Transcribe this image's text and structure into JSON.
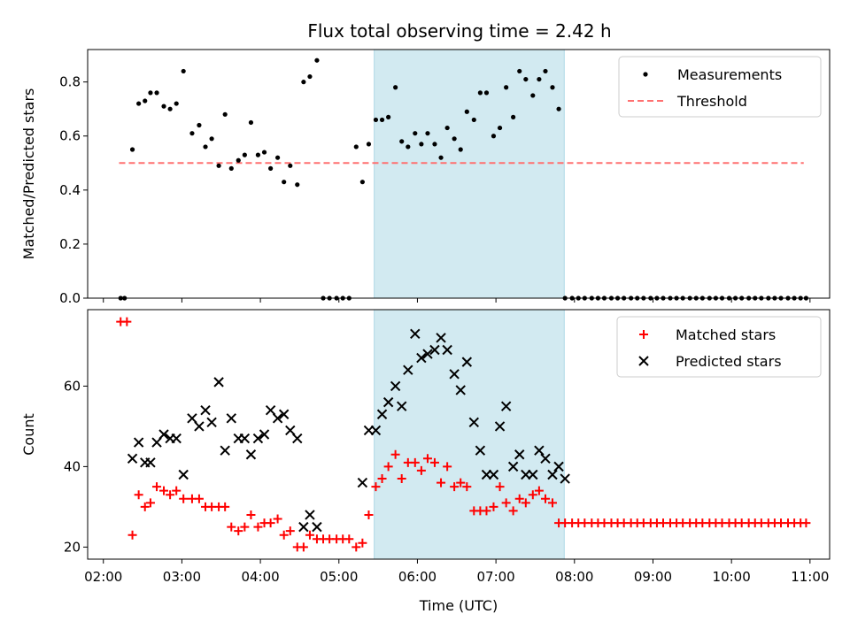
{
  "title": "Flux total observing time = 2.42 h",
  "colors": {
    "measurement": "#000000",
    "threshold": "#ff7070",
    "matched": "#ff0000",
    "predicted": "#000000",
    "shade": "#add8e6"
  },
  "chart_data": [
    {
      "type": "scatter",
      "ylabel": "Matched/Predicted stars",
      "ylim": [
        0,
        0.92
      ],
      "yticks": [
        "0.0",
        "0.2",
        "0.4",
        "0.6",
        "0.8"
      ],
      "ytick_values": [
        0,
        0.2,
        0.4,
        0.6,
        0.8
      ],
      "xlim": [
        1.8,
        11.25
      ],
      "shaded_span": [
        5.45,
        7.87
      ],
      "legend": {
        "position": "top-right",
        "entries": [
          "Measurements",
          "Threshold"
        ]
      },
      "threshold": {
        "name": "Threshold",
        "value": 0.5,
        "x_range": [
          2.2,
          10.92
        ]
      },
      "series": [
        {
          "name": "Measurements",
          "x": [
            2.22,
            2.27,
            2.37,
            2.45,
            2.53,
            2.6,
            2.68,
            2.77,
            2.85,
            2.93,
            3.02,
            3.13,
            3.22,
            3.3,
            3.38,
            3.47,
            3.55,
            3.63,
            3.72,
            3.8,
            3.88,
            3.97,
            4.05,
            4.13,
            4.22,
            4.3,
            4.38,
            4.47,
            4.55,
            4.63,
            4.72,
            4.8,
            4.88,
            4.97,
            5.05,
            5.13,
            5.22,
            5.3,
            5.38,
            5.47,
            5.55,
            5.63,
            5.72,
            5.8,
            5.88,
            5.97,
            6.05,
            6.13,
            6.22,
            6.3,
            6.38,
            6.47,
            6.55,
            6.63,
            6.72,
            6.8,
            6.88,
            6.97,
            7.05,
            7.13,
            7.22,
            7.3,
            7.38,
            7.47,
            7.55,
            7.63,
            7.72,
            7.8,
            7.88,
            7.97,
            8.05,
            8.13,
            8.22,
            8.3,
            8.38,
            8.47,
            8.55,
            8.63,
            8.72,
            8.8,
            8.88,
            8.97,
            9.05,
            9.13,
            9.22,
            9.3,
            9.38,
            9.47,
            9.55,
            9.63,
            9.72,
            9.8,
            9.88,
            9.97,
            10.05,
            10.13,
            10.22,
            10.3,
            10.38,
            10.47,
            10.55,
            10.63,
            10.72,
            10.8,
            10.88,
            10.95
          ],
          "y": [
            0,
            0,
            0.55,
            0.72,
            0.73,
            0.76,
            0.76,
            0.71,
            0.7,
            0.72,
            0.84,
            0.61,
            0.64,
            0.56,
            0.59,
            0.49,
            0.68,
            0.48,
            0.51,
            0.53,
            0.65,
            0.53,
            0.54,
            0.48,
            0.52,
            0.43,
            0.49,
            0.42,
            0.8,
            0.82,
            0.88,
            0,
            0,
            0,
            0,
            0,
            0.56,
            0.43,
            0.57,
            0.66,
            0.66,
            0.67,
            0.78,
            0.58,
            0.56,
            0.61,
            0.57,
            0.61,
            0.57,
            0.52,
            0.63,
            0.59,
            0.55,
            0.69,
            0.66,
            0.76,
            0.76,
            0.6,
            0.63,
            0.78,
            0.67,
            0.84,
            0.81,
            0.75,
            0.81,
            0.84,
            0.78,
            0.7,
            0,
            0,
            0,
            0,
            0,
            0,
            0,
            0,
            0,
            0,
            0,
            0,
            0,
            0,
            0,
            0,
            0,
            0,
            0,
            0,
            0,
            0,
            0,
            0,
            0,
            0,
            0,
            0,
            0,
            0,
            0,
            0,
            0,
            0,
            0,
            0,
            0,
            0
          ]
        }
      ]
    },
    {
      "type": "scatter",
      "xlabel": "Time (UTC)",
      "ylabel": "Count",
      "ylim": [
        17,
        79
      ],
      "yticks": [
        "20",
        "40",
        "60"
      ],
      "ytick_values": [
        20,
        40,
        60
      ],
      "xlim": [
        1.8,
        11.25
      ],
      "xticks": [
        "02:00",
        "03:00",
        "04:00",
        "05:00",
        "06:00",
        "07:00",
        "08:00",
        "09:00",
        "10:00",
        "11:00"
      ],
      "xtick_values": [
        2,
        3,
        4,
        5,
        6,
        7,
        8,
        9,
        10,
        11
      ],
      "shaded_span": [
        5.45,
        7.87
      ],
      "legend": {
        "position": "top-right",
        "entries": [
          "Matched stars",
          "Predicted stars"
        ]
      },
      "series": [
        {
          "name": "Matched stars",
          "x": [
            2.22,
            2.3,
            2.37,
            2.45,
            2.53,
            2.6,
            2.68,
            2.77,
            2.85,
            2.93,
            3.02,
            3.13,
            3.22,
            3.3,
            3.38,
            3.47,
            3.55,
            3.63,
            3.72,
            3.8,
            3.88,
            3.97,
            4.05,
            4.13,
            4.22,
            4.3,
            4.38,
            4.47,
            4.55,
            4.63,
            4.72,
            4.8,
            4.88,
            4.97,
            5.05,
            5.13,
            5.22,
            5.3,
            5.38,
            5.47,
            5.55,
            5.63,
            5.72,
            5.8,
            5.88,
            5.97,
            6.05,
            6.13,
            6.22,
            6.3,
            6.38,
            6.47,
            6.55,
            6.63,
            6.72,
            6.8,
            6.88,
            6.97,
            7.05,
            7.13,
            7.22,
            7.3,
            7.38,
            7.47,
            7.55,
            7.63,
            7.72,
            7.8,
            7.88,
            7.97,
            8.05,
            8.13,
            8.22,
            8.3,
            8.38,
            8.47,
            8.55,
            8.63,
            8.72,
            8.8,
            8.88,
            8.97,
            9.05,
            9.13,
            9.22,
            9.3,
            9.38,
            9.47,
            9.55,
            9.63,
            9.72,
            9.8,
            9.88,
            9.97,
            10.05,
            10.13,
            10.22,
            10.3,
            10.38,
            10.47,
            10.55,
            10.63,
            10.72,
            10.8,
            10.88,
            10.95
          ],
          "y": [
            76,
            76,
            23,
            33,
            30,
            31,
            35,
            34,
            33,
            34,
            32,
            32,
            32,
            30,
            30,
            30,
            30,
            25,
            24,
            25,
            28,
            25,
            26,
            26,
            27,
            23,
            24,
            20,
            20,
            23,
            22,
            22,
            22,
            22,
            22,
            22,
            20,
            21,
            28,
            35,
            37,
            40,
            43,
            37,
            41,
            41,
            39,
            42,
            41,
            36,
            40,
            35,
            36,
            35,
            29,
            29,
            29,
            30,
            35,
            31,
            29,
            32,
            31,
            33,
            34,
            32,
            31,
            26,
            26,
            26,
            26,
            26,
            26,
            26,
            26,
            26,
            26,
            26,
            26,
            26,
            26,
            26,
            26,
            26,
            26,
            26,
            26,
            26,
            26,
            26,
            26,
            26,
            26,
            26,
            26,
            26,
            26,
            26,
            26,
            26,
            26,
            26,
            26,
            26,
            26,
            26
          ]
        },
        {
          "name": "Predicted stars",
          "x": [
            2.37,
            2.45,
            2.53,
            2.6,
            2.68,
            2.77,
            2.85,
            2.93,
            3.02,
            3.13,
            3.22,
            3.3,
            3.38,
            3.47,
            3.55,
            3.63,
            3.72,
            3.8,
            3.88,
            3.97,
            4.05,
            4.13,
            4.22,
            4.3,
            4.38,
            4.47,
            4.55,
            4.63,
            4.72,
            5.3,
            5.38,
            5.47,
            5.55,
            5.63,
            5.72,
            5.8,
            5.88,
            5.97,
            6.05,
            6.13,
            6.22,
            6.3,
            6.38,
            6.47,
            6.55,
            6.63,
            6.72,
            6.8,
            6.88,
            6.97,
            7.05,
            7.13,
            7.22,
            7.3,
            7.38,
            7.47,
            7.55,
            7.63,
            7.72,
            7.8,
            7.88
          ],
          "y": [
            42,
            46,
            41,
            41,
            46,
            48,
            47,
            47,
            38,
            52,
            50,
            54,
            51,
            61,
            44,
            52,
            47,
            47,
            43,
            47,
            48,
            54,
            52,
            53,
            49,
            47,
            25,
            28,
            25,
            36,
            49,
            49,
            53,
            56,
            60,
            55,
            64,
            73,
            67,
            68,
            69,
            72,
            69,
            63,
            59,
            66,
            51,
            44,
            38,
            38,
            50,
            55,
            40,
            43,
            38,
            38,
            44,
            42,
            38,
            40,
            37
          ]
        }
      ]
    }
  ]
}
